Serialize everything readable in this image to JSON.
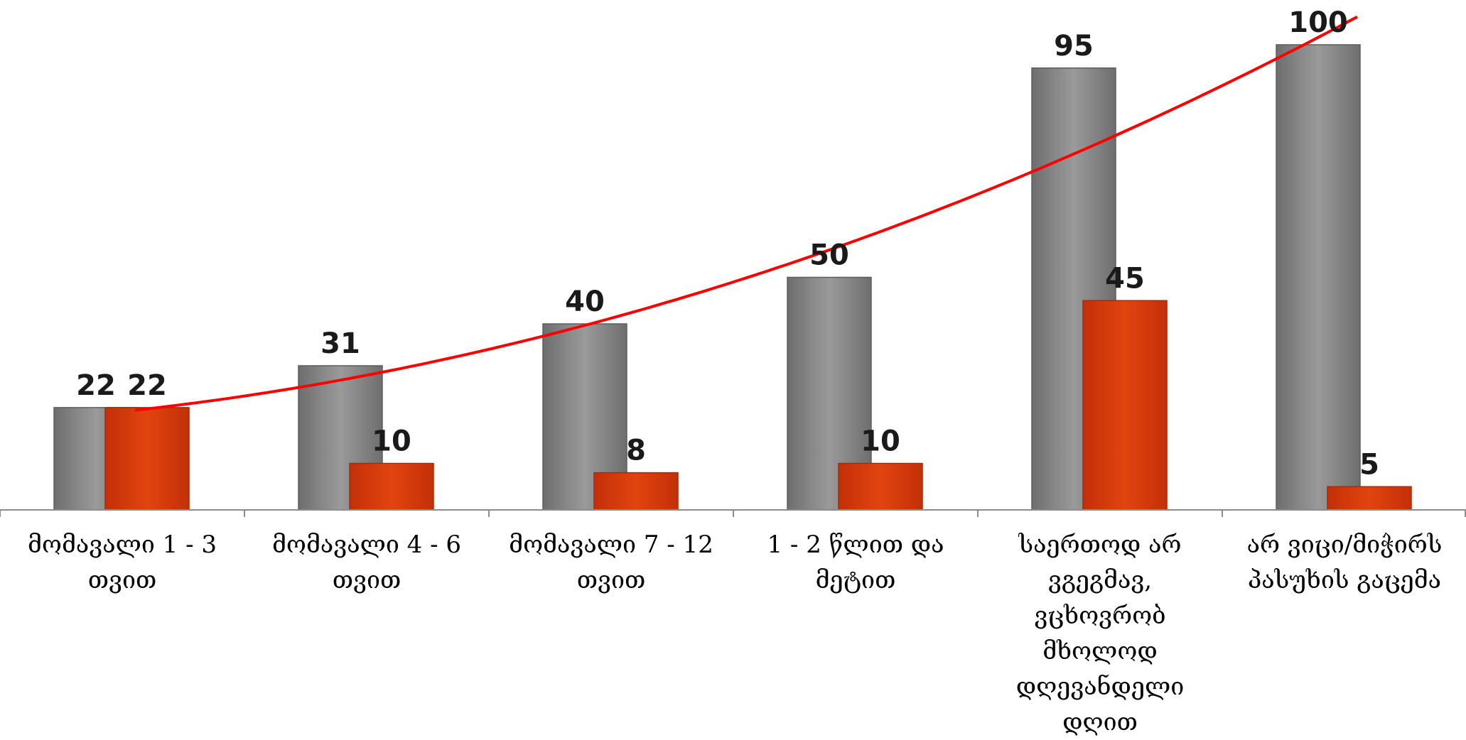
{
  "chart_data": {
    "type": "bar",
    "categories": [
      "მომავალი 1 - 3 თვით",
      "მომავალი 4 - 6 თვით",
      "მომავალი 7 - 12 თვით",
      "1 - 2 წლით და მეტით",
      "საერთოდ არ ვგეგმავ, ვცხოვრობ მხოლოდ დღევანდელი დღით",
      "არ ვიცი/მიჭირს პასუხის გაცემა"
    ],
    "category_lines": [
      [
        "მომავალი 1 - 3",
        "თვით"
      ],
      [
        "მომავალი 4 - 6",
        "თვით"
      ],
      [
        "მომავალი 7 - 12",
        "თვით"
      ],
      [
        "1 - 2 წლით და",
        "მეტით"
      ],
      [
        "საერთოდ არ",
        "ვგეგმავ, ვცხოვრობ",
        "მხოლოდ",
        "დღევანდელი",
        "დღით"
      ],
      [
        "არ ვიცი/მიჭირს",
        "პასუხის გაცემა"
      ]
    ],
    "series": [
      {
        "values": [
          22,
          31,
          40,
          50,
          95,
          100
        ],
        "color": "#8a8a8a"
      },
      {
        "values": [
          22,
          10,
          8,
          10,
          45,
          5
        ],
        "color": "#d83a0c"
      }
    ],
    "trendline": {
      "series_index": 0,
      "color": "#ff0000",
      "type": "polynomial"
    },
    "ylim": [
      0,
      100
    ],
    "grid": false,
    "legend": "none"
  }
}
